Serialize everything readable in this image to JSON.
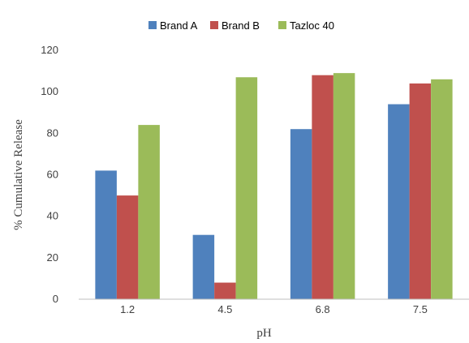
{
  "chart_data": {
    "type": "bar",
    "categories": [
      "1.2",
      "4.5",
      "6.8",
      "7.5"
    ],
    "series": [
      {
        "name": "Brand A",
        "color": "#4f81bd",
        "values": [
          62,
          31,
          82,
          94
        ]
      },
      {
        "name": "Brand B",
        "color": "#c0504d",
        "values": [
          50,
          8,
          108,
          104
        ]
      },
      {
        "name": "Tazloc 40",
        "color": "#9bbb59",
        "values": [
          84,
          107,
          109,
          106
        ]
      }
    ],
    "title": "",
    "xlabel": "pH",
    "ylabel": "% Cumulative Release",
    "ylim": [
      0,
      120
    ],
    "yticks": [
      "0",
      "20",
      "40",
      "60",
      "80",
      "100",
      "120"
    ],
    "grid": false,
    "legend_position": "top"
  }
}
